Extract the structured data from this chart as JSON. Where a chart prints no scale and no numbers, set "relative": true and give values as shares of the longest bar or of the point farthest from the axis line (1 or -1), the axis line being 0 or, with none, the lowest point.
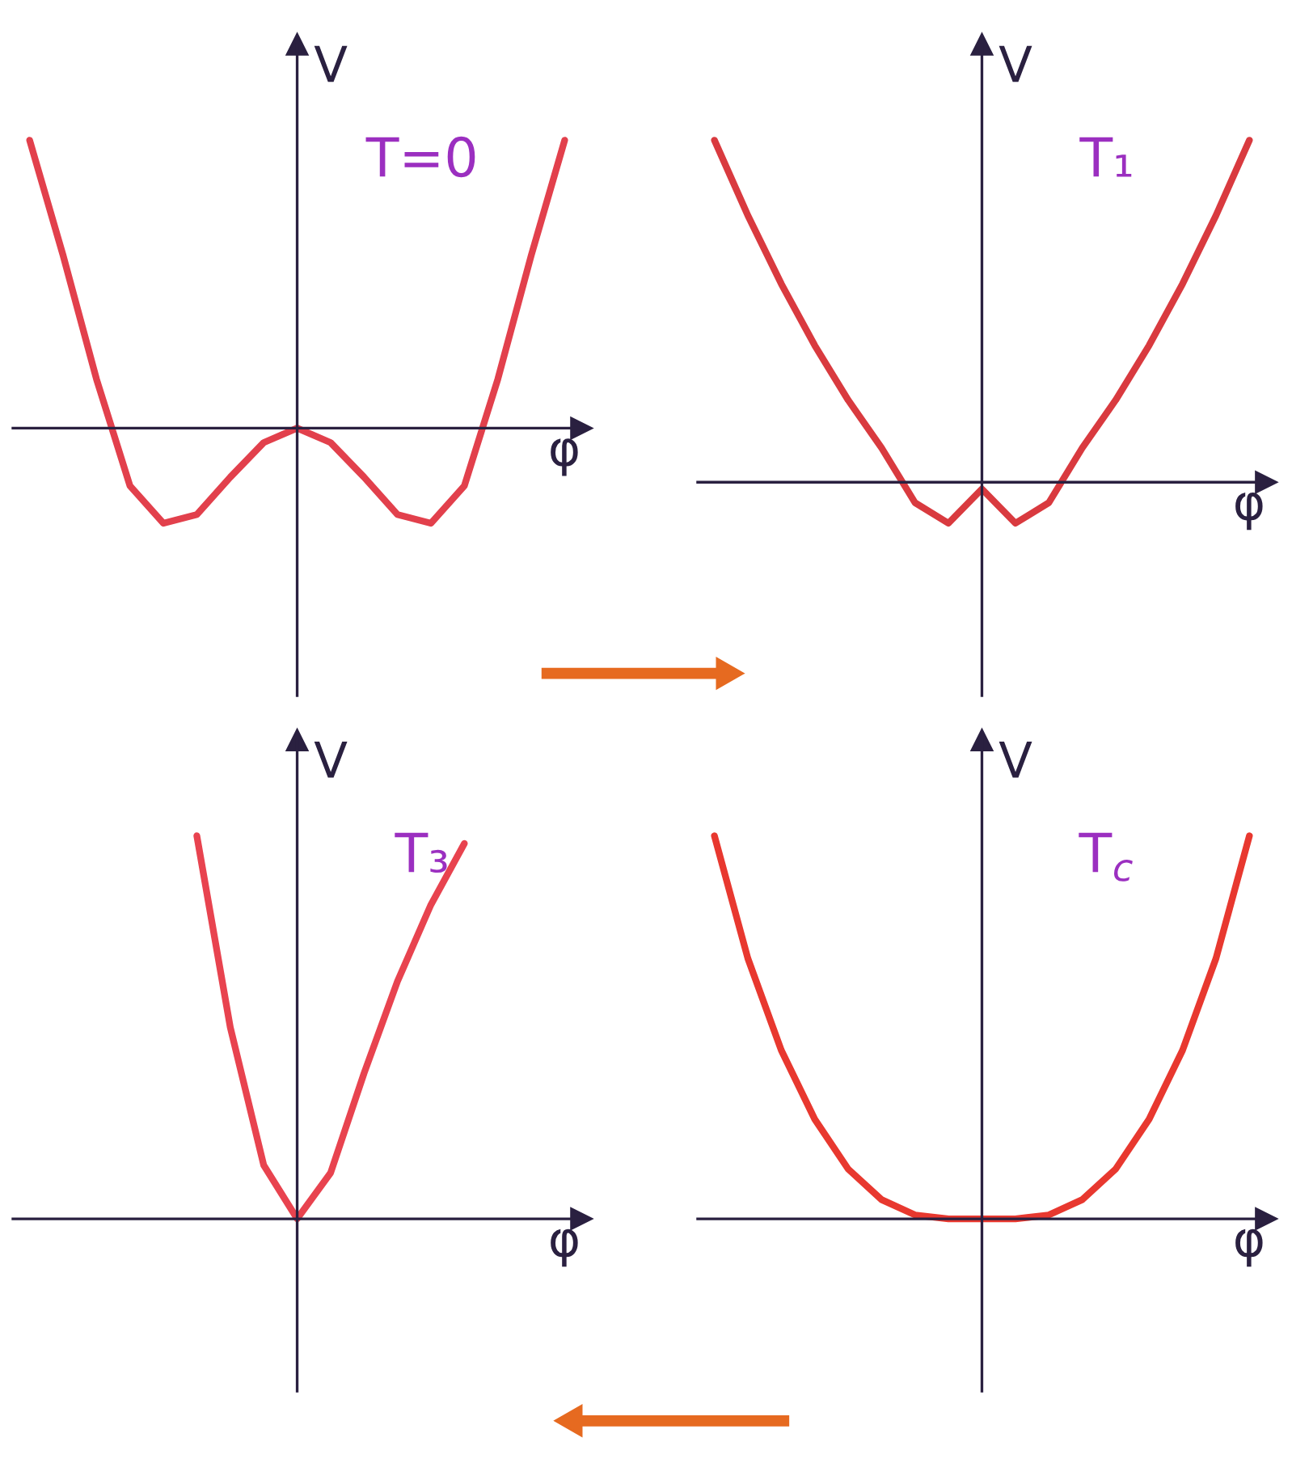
{
  "chart_data": [
    {
      "type": "line",
      "relative": true,
      "xlabel": "φ",
      "ylabel": "V",
      "annotations": [
        "T=0"
      ],
      "categories": [
        null,
        null,
        null,
        null,
        null,
        null,
        null,
        null,
        null,
        null,
        null,
        null,
        null,
        null,
        null,
        null,
        null
      ],
      "series": [
        {
          "color": "#e2404c",
          "values": [
            1.0,
            0.6,
            0.17,
            -0.2,
            -0.33,
            -0.3,
            -0.17,
            -0.05,
            0,
            -0.05,
            -0.17,
            -0.3,
            -0.33,
            -0.2,
            0.17,
            0.6,
            1.0
          ]
        }
      ]
    },
    {
      "type": "line",
      "relative": true,
      "xlabel": "φ",
      "ylabel": "V",
      "annotations": [
        "T₁"
      ],
      "categories": [
        null,
        null,
        null,
        null,
        null,
        null,
        null,
        null,
        null,
        null,
        null,
        null,
        null,
        null,
        null,
        null,
        null
      ],
      "series": [
        {
          "color": "#d93a3f",
          "values": [
            1.0,
            0.78,
            0.58,
            0.4,
            0.24,
            0.1,
            -0.06,
            -0.12,
            -0.02,
            -0.12,
            -0.06,
            0.1,
            0.24,
            0.4,
            0.58,
            0.78,
            1.0
          ]
        }
      ]
    },
    {
      "type": "line",
      "relative": true,
      "xlabel": "φ",
      "ylabel": "V",
      "annotations": [
        "T₃"
      ],
      "categories": [
        null,
        null,
        null,
        null,
        null,
        null,
        null,
        null,
        null,
        null,
        null,
        null,
        null,
        null,
        null,
        null,
        null
      ],
      "series": [
        {
          "color": "#e8434f",
          "values": [
            null,
            null,
            null,
            null,
            null,
            1.0,
            0.5,
            0.14,
            0,
            0.12,
            0.38,
            0.62,
            0.82,
            0.98,
            null,
            null,
            null
          ]
        }
      ]
    },
    {
      "type": "line",
      "relative": true,
      "xlabel": "φ",
      "ylabel": "V",
      "annotations": [
        "T$_{c}$"
      ],
      "categories": [
        null,
        null,
        null,
        null,
        null,
        null,
        null,
        null,
        null,
        null,
        null,
        null,
        null,
        null,
        null,
        null,
        null
      ],
      "series": [
        {
          "color": "#e8382f",
          "values": [
            1,
            0.68,
            0.44,
            0.26,
            0.13,
            0.05,
            0.01,
            0,
            0,
            0,
            0.01,
            0.05,
            0.13,
            0.26,
            0.44,
            0.68,
            1
          ]
        }
      ]
    }
  ]
}
